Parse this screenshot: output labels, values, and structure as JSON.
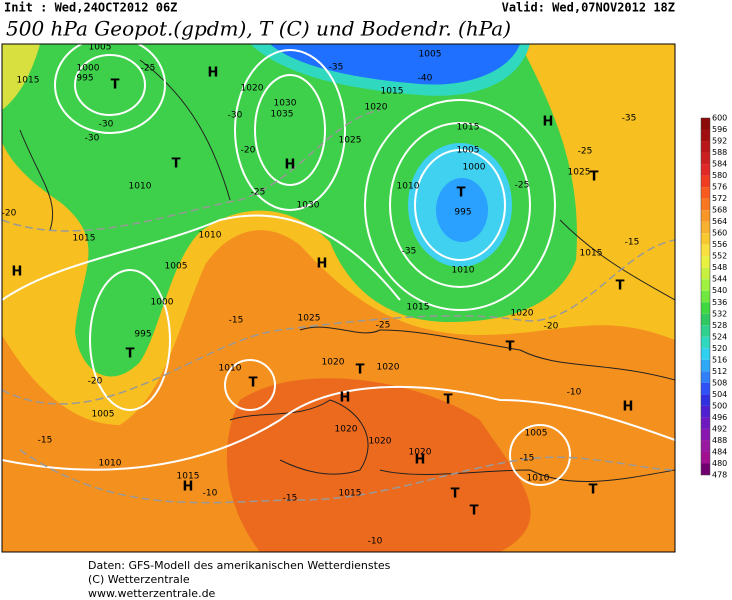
{
  "header": {
    "init": "Init : Wed,24OCT2012 06Z",
    "valid": "Valid: Wed,07NOV2012 18Z",
    "title": "500 hPa Geopot.(gpdm), T (C) und Bodendr. (hPa)"
  },
  "map": {
    "labels": [
      "1005",
      "1000",
      "995",
      "T",
      "1015",
      "H",
      "-25",
      "-30",
      "-30",
      "1010",
      "T",
      "1020",
      "1030",
      "1035",
      "-30",
      "-20",
      "H",
      "-25",
      "1030",
      "1010",
      "1025",
      "1020",
      "1015",
      "1005",
      "-35",
      "-40",
      "H",
      "1015",
      "1005",
      "1000",
      "995",
      "T",
      "-35",
      "1010",
      "-25",
      "-25",
      "1025",
      "T",
      "-35",
      "1015",
      "-20",
      "H",
      "1005",
      "1000",
      "995",
      "T",
      "-20",
      "1005",
      "-15",
      "H",
      "1025",
      "1015",
      "1010",
      "1020",
      "-20",
      "-15",
      "1015",
      "T",
      "T",
      "-25",
      "1020",
      "T",
      "1020",
      "H",
      "T",
      "T",
      "1010",
      "1010",
      "-15",
      "1015",
      "H",
      "-10",
      "-15",
      "1020",
      "1020",
      "1020",
      "H",
      "1005",
      "-15",
      "1010",
      "H",
      "T",
      "T",
      "T",
      "1015",
      "-10",
      "-10"
    ]
  },
  "colorbar": {
    "labels": [
      600,
      596,
      592,
      588,
      584,
      580,
      576,
      572,
      568,
      564,
      560,
      556,
      552,
      548,
      544,
      540,
      536,
      532,
      528,
      524,
      520,
      516,
      512,
      508,
      504,
      500,
      496,
      492,
      488,
      484,
      480,
      478
    ],
    "colors": [
      "#8b0a0a",
      "#a01010",
      "#b81818",
      "#cc2020",
      "#e02828",
      "#f03c20",
      "#f85a20",
      "#f87820",
      "#f89628",
      "#f8b030",
      "#f8c830",
      "#f8e040",
      "#e8f040",
      "#c8f040",
      "#a0f040",
      "#70e840",
      "#40d840",
      "#30c860",
      "#30d090",
      "#30d8c0",
      "#30d0f0",
      "#30a8f8",
      "#3080f8",
      "#3050f8",
      "#3030e0",
      "#5020d0",
      "#7018c0",
      "#8818b0",
      "#9818a0",
      "#a01090",
      "#700070"
    ]
  },
  "footer": {
    "line1": "Daten: GFS-Modell des amerikanischen Wetterdienstes",
    "line2": "(C) Wetterzentrale",
    "line3": "www.wetterzentrale.de"
  }
}
